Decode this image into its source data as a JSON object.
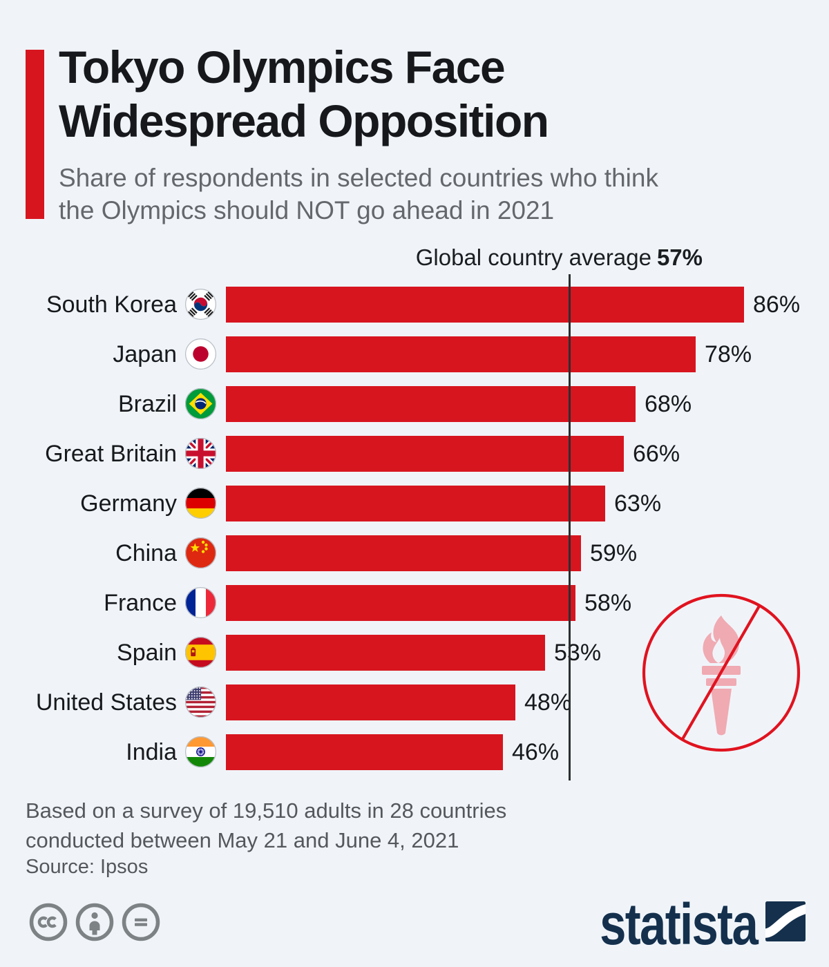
{
  "header": {
    "title_line1": "Tokyo Olympics Face",
    "title_line2": "Widespread Opposition",
    "subtitle_line1": "Share of respondents in selected countries who think",
    "subtitle_line2": "the Olympics should NOT go ahead in 2021"
  },
  "chart_data": {
    "type": "bar",
    "orientation": "horizontal",
    "title": "Tokyo Olympics Face Widespread Opposition",
    "subtitle": "Share of respondents in selected countries who think the Olympics should NOT go ahead in 2021",
    "unit": "%",
    "xlim": [
      0,
      100
    ],
    "grid": false,
    "categories": [
      "South Korea",
      "Japan",
      "Brazil",
      "Great Britain",
      "Germany",
      "China",
      "France",
      "Spain",
      "United States",
      "India"
    ],
    "values": [
      86,
      78,
      68,
      66,
      63,
      59,
      58,
      53,
      48,
      46
    ],
    "value_labels": [
      "86%",
      "78%",
      "68%",
      "66%",
      "63%",
      "59%",
      "58%",
      "53%",
      "48%",
      "46%"
    ],
    "flags": [
      "kr",
      "jp",
      "br",
      "gb",
      "de",
      "cn",
      "fr",
      "es",
      "us",
      "in"
    ],
    "average": {
      "label": "Global country average",
      "value": 57,
      "value_label": "57%"
    },
    "bar_color": "#D7151F"
  },
  "annotation": {
    "icon": "no-olympics-torch-icon"
  },
  "footer": {
    "note_line1": "Based on a survey of 19,510 adults in 28 countries",
    "note_line2": "conducted between May 21 and June 4, 2021",
    "source": "Source: Ipsos"
  },
  "license": {
    "icons": [
      "cc-icon",
      "attribution-icon",
      "no-derivatives-icon"
    ]
  },
  "branding": {
    "logo_text": "statista"
  },
  "colors": {
    "background": "#F0F4F9",
    "accent_red": "#D7151F",
    "bar_red": "#D7151F",
    "prohibition_red": "#E0131F",
    "torch_pink": "#F0AAB2",
    "average_line": "#2C2E31",
    "navy": "#14304D",
    "text_dark": "#17191C",
    "text_gray": "#64686C"
  }
}
